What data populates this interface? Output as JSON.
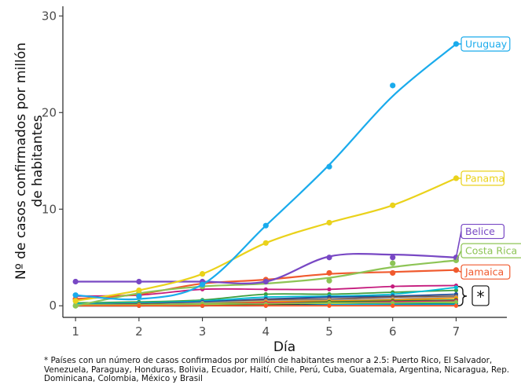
{
  "chart_data": {
    "type": "line",
    "title": "",
    "xlabel": "Día",
    "ylabel_lines": [
      "Nº de casos confirmados por millón",
      "de habitantes"
    ],
    "x": [
      1,
      2,
      3,
      4,
      5,
      6,
      7
    ],
    "xlim": [
      0.8,
      7.8
    ],
    "ylim": [
      -1.2,
      31
    ],
    "x_ticks": [
      1,
      2,
      3,
      4,
      5,
      6,
      7
    ],
    "y_ticks": [
      0,
      10,
      20,
      30
    ],
    "grid": false,
    "labeled_series": [
      {
        "name": "Uruguay",
        "color": "#1aabec",
        "values": [
          1.1,
          1.0,
          2.2,
          8.3,
          14.4,
          22.8,
          27.1
        ],
        "curve": [
          1.1,
          0.7,
          2.2,
          8.3,
          14.6,
          21.7,
          27.1
        ]
      },
      {
        "name": "Panama",
        "color": "#ead21b",
        "values": [
          0.5,
          1.6,
          3.3,
          6.5,
          8.6,
          10.4,
          13.2
        ],
        "curve": [
          0.5,
          1.6,
          3.3,
          6.5,
          8.6,
          10.4,
          13.2
        ]
      },
      {
        "name": "Belice",
        "color": "#7848c4",
        "values": [
          2.5,
          2.5,
          2.5,
          2.5,
          5.0,
          5.0,
          5.0
        ],
        "curve": [
          2.5,
          2.5,
          2.5,
          2.5,
          5.1,
          5.3,
          5.0
        ]
      },
      {
        "name": "Costa Rica",
        "color": "#8dc455",
        "values": [
          0.0,
          1.3,
          2.0,
          2.5,
          2.6,
          4.4,
          4.7
        ],
        "curve": [
          0.0,
          1.3,
          2.0,
          2.3,
          2.9,
          4.0,
          4.7
        ]
      },
      {
        "name": "Jamaica",
        "color": "#f05a2e",
        "values": [
          0.7,
          1.0,
          2.4,
          2.7,
          3.4,
          3.4,
          3.7
        ],
        "curve": [
          0.7,
          1.2,
          2.3,
          2.7,
          3.3,
          3.5,
          3.7
        ]
      }
    ],
    "end_label_y": {
      "Uruguay": 27.1,
      "Panama": 13.2,
      "Belice": 7.7,
      "Costa Rica": 5.7,
      "Jamaica": 3.5
    },
    "low_series": [
      {
        "color": "#c51b7d",
        "values": [
          1.0,
          1.1,
          1.7,
          1.7,
          1.7,
          2.0,
          2.1
        ]
      },
      {
        "color": "#3d9e3d",
        "values": [
          0.3,
          0.4,
          0.6,
          1.2,
          1.2,
          1.4,
          1.6
        ]
      },
      {
        "color": "#00bcd4",
        "values": [
          0.2,
          0.3,
          0.5,
          0.9,
          1.0,
          1.2,
          1.9
        ]
      },
      {
        "color": "#1f4e9c",
        "values": [
          0.1,
          0.2,
          0.4,
          0.7,
          0.9,
          1.0,
          1.2
        ]
      },
      {
        "color": "#795548",
        "values": [
          0.1,
          0.2,
          0.3,
          0.6,
          0.7,
          0.9,
          1.0
        ]
      },
      {
        "color": "#9e9e9e",
        "values": [
          0.1,
          0.1,
          0.3,
          0.5,
          0.6,
          0.7,
          0.9
        ]
      },
      {
        "color": "#ff9800",
        "values": [
          0.0,
          0.1,
          0.2,
          0.4,
          0.5,
          0.6,
          0.8
        ]
      },
      {
        "color": "#2e7d32",
        "values": [
          0.0,
          0.1,
          0.2,
          0.3,
          0.4,
          0.5,
          0.6
        ]
      },
      {
        "color": "#e91e63",
        "values": [
          0.0,
          0.0,
          0.1,
          0.3,
          0.3,
          0.4,
          0.5
        ]
      },
      {
        "color": "#673ab7",
        "values": [
          0.0,
          0.0,
          0.1,
          0.2,
          0.2,
          0.3,
          0.4
        ]
      },
      {
        "color": "#cddc39",
        "values": [
          0.0,
          0.0,
          0.1,
          0.1,
          0.2,
          0.2,
          0.3
        ]
      },
      {
        "color": "#009688",
        "values": [
          0.0,
          0.0,
          0.0,
          0.1,
          0.1,
          0.2,
          0.2
        ]
      },
      {
        "color": "#000000",
        "values": [
          0.0,
          0.0,
          0.0,
          0.1,
          0.1,
          0.1,
          0.1
        ]
      },
      {
        "color": "#03a9f4",
        "values": [
          0.0,
          0.0,
          0.0,
          0.0,
          0.1,
          0.1,
          0.1
        ]
      },
      {
        "color": "#8bc34a",
        "values": [
          0.1,
          0.1,
          0.2,
          0.2,
          0.3,
          0.3,
          0.4
        ]
      },
      {
        "color": "#ff5722",
        "values": [
          0.0,
          0.0,
          0.0,
          0.0,
          0.0,
          0.0,
          0.0
        ]
      }
    ],
    "bracket_symbol": "*"
  },
  "footnote": "* Países con un número de casos confirmados por millón de habitantes menor a 2.5: Puerto Rico, El Salvador, Venezuela, Paraguay, Honduras, Bolivia, Ecuador, Haití, Chile, Perú, Cuba, Guatemala, Argentina, Nicaragua, Rep. Dominicana, Colombia, México y Brasil"
}
